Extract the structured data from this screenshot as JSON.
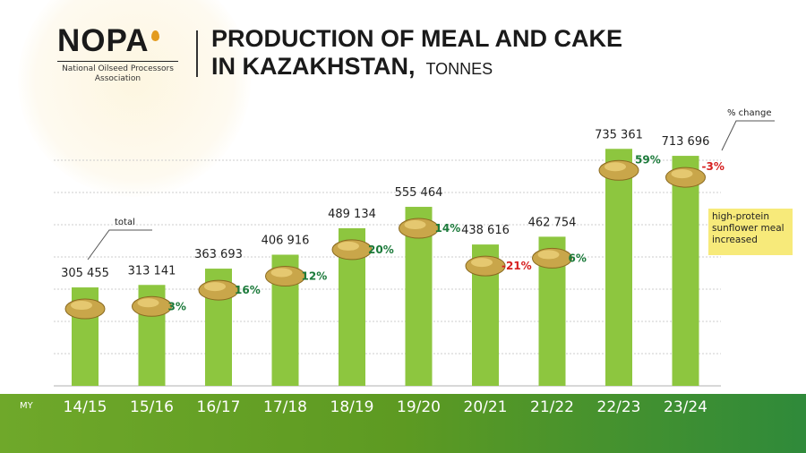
{
  "logo": {
    "word": "NOPA",
    "subtitle_1": "National Oilseed Processors",
    "subtitle_2": "Association"
  },
  "header": {
    "title_line1": "PRODUCTION OF MEAL AND CAKE",
    "title_line2": "IN KAZAKHSTAN,",
    "units": "TONNES"
  },
  "axis_prefix": "MY",
  "annotations": {
    "total": "total",
    "pct_change": "% change",
    "note": "high-protein sunflower meal increased"
  },
  "colors": {
    "bar": "#8dc63f",
    "positive": "#1b7a3a",
    "negative": "#d62020",
    "band": "#6aa329",
    "note": "#f7ea7a"
  },
  "chart_data": {
    "type": "bar",
    "title": "PRODUCTION OF MEAL AND CAKE IN KAZAKHSTAN, TONNES",
    "categories": [
      "14/15",
      "15/16",
      "16/17",
      "17/18",
      "18/19",
      "19/20",
      "20/21",
      "21/22",
      "22/23",
      "23/24"
    ],
    "values": [
      305455,
      313141,
      363693,
      406916,
      489134,
      555464,
      438616,
      462754,
      735361,
      713696
    ],
    "value_labels": [
      "305 455",
      "313 141",
      "363 693",
      "406 916",
      "489 134",
      "555 464",
      "438 616",
      "462 754",
      "735 361",
      "713 696"
    ],
    "pct_change": [
      "",
      "3%",
      "16%",
      "12%",
      "20%",
      "14%",
      "-21%",
      "6%",
      "59%",
      "-3%"
    ],
    "ylim": [
      0,
      800000
    ],
    "grid": true
  }
}
